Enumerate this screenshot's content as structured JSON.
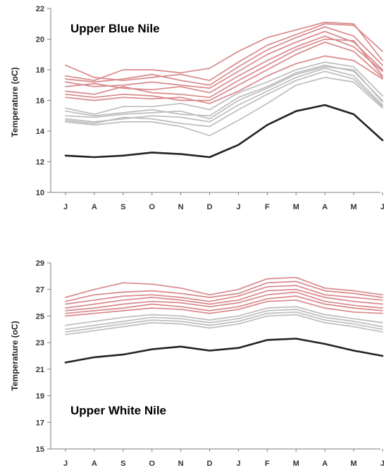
{
  "chart_data": [
    {
      "type": "line",
      "title": "Upper Blue Nile",
      "xlabel": "",
      "ylabel": "Temperature (oC)",
      "categories": [
        "J",
        "A",
        "S",
        "O",
        "N",
        "D",
        "J",
        "F",
        "M",
        "A",
        "M",
        "J"
      ],
      "ylim": [
        10,
        22
      ],
      "yticks": [
        10,
        12,
        14,
        16,
        18,
        20,
        22
      ],
      "grid": false,
      "colors": {
        "warm": "#d9888a",
        "mid": "#bdbdbd",
        "base": "#222222"
      },
      "series": [
        {
          "group": "warm",
          "values": [
            18.3,
            17.5,
            17.3,
            17.5,
            17.7,
            17.3,
            18.5,
            19.6,
            20.3,
            21.0,
            20.9,
            19.2
          ]
        },
        {
          "group": "warm",
          "values": [
            17.6,
            17.3,
            18.0,
            18.0,
            17.8,
            18.1,
            19.2,
            20.1,
            20.6,
            21.1,
            21.0,
            18.6
          ]
        },
        {
          "group": "warm",
          "values": [
            17.4,
            17.2,
            17.4,
            17.7,
            17.3,
            17.0,
            18.2,
            19.3,
            20.1,
            20.8,
            20.2,
            18.3
          ]
        },
        {
          "group": "warm",
          "values": [
            17.2,
            16.9,
            17.0,
            17.2,
            17.0,
            16.8,
            17.9,
            19.0,
            19.8,
            20.5,
            19.8,
            18.0
          ]
        },
        {
          "group": "warm",
          "values": [
            16.9,
            17.1,
            16.8,
            16.7,
            16.9,
            16.5,
            17.6,
            18.6,
            19.5,
            20.2,
            19.5,
            17.9
          ]
        },
        {
          "group": "warm",
          "values": [
            16.6,
            16.4,
            16.9,
            16.5,
            16.4,
            16.2,
            17.3,
            18.3,
            19.3,
            20.0,
            19.9,
            17.6
          ]
        },
        {
          "group": "warm",
          "values": [
            16.4,
            16.2,
            16.4,
            16.3,
            16.0,
            16.0,
            17.0,
            18.0,
            19.0,
            19.8,
            19.2,
            17.5
          ]
        },
        {
          "group": "warm",
          "values": [
            16.2,
            16.0,
            16.2,
            16.1,
            16.2,
            15.8,
            16.6,
            17.6,
            18.4,
            18.9,
            18.6,
            17.4
          ]
        },
        {
          "group": "mid",
          "values": [
            15.5,
            15.1,
            15.6,
            15.6,
            15.8,
            15.4,
            16.5,
            17.2,
            18.0,
            18.5,
            18.2,
            16.3
          ]
        },
        {
          "group": "mid",
          "values": [
            15.3,
            15.0,
            15.2,
            15.4,
            15.1,
            15.0,
            16.2,
            16.9,
            17.8,
            18.3,
            17.9,
            16.0
          ]
        },
        {
          "group": "mid",
          "values": [
            15.0,
            14.9,
            15.1,
            15.2,
            15.3,
            14.8,
            16.0,
            16.8,
            17.7,
            18.2,
            18.0,
            15.9
          ]
        },
        {
          "group": "mid",
          "values": [
            14.8,
            14.6,
            14.8,
            15.0,
            14.9,
            14.6,
            15.7,
            16.6,
            17.5,
            18.1,
            17.6,
            15.7
          ]
        },
        {
          "group": "mid",
          "values": [
            14.7,
            14.5,
            14.9,
            14.8,
            14.5,
            14.3,
            15.4,
            16.4,
            17.3,
            17.9,
            17.4,
            15.6
          ]
        },
        {
          "group": "mid",
          "values": [
            14.6,
            14.4,
            14.6,
            14.6,
            14.3,
            13.7,
            14.7,
            15.8,
            17.0,
            17.5,
            17.2,
            15.5
          ]
        },
        {
          "group": "base",
          "values": [
            12.4,
            12.3,
            12.4,
            12.6,
            12.5,
            12.3,
            13.1,
            14.4,
            15.3,
            15.7,
            15.1,
            13.4
          ]
        }
      ]
    },
    {
      "type": "line",
      "title": "Upper White Nile",
      "xlabel": "",
      "ylabel": "Temperature (oC)",
      "categories": [
        "J",
        "A",
        "S",
        "O",
        "N",
        "D",
        "J",
        "F",
        "M",
        "A",
        "M",
        "J"
      ],
      "ylim": [
        15,
        29
      ],
      "yticks": [
        15,
        17,
        19,
        21,
        23,
        25,
        27,
        29
      ],
      "grid": false,
      "colors": {
        "warm": "#d9888a",
        "mid": "#bdbdbd",
        "base": "#222222"
      },
      "series": [
        {
          "group": "warm",
          "values": [
            26.4,
            27.0,
            27.5,
            27.4,
            27.1,
            26.6,
            27.0,
            27.8,
            27.9,
            27.1,
            26.9,
            26.6
          ]
        },
        {
          "group": "warm",
          "values": [
            26.1,
            26.6,
            26.8,
            26.9,
            26.7,
            26.4,
            26.7,
            27.5,
            27.6,
            26.9,
            26.7,
            26.4
          ]
        },
        {
          "group": "warm",
          "values": [
            25.9,
            26.2,
            26.5,
            26.6,
            26.4,
            26.1,
            26.5,
            27.2,
            27.3,
            26.6,
            26.4,
            26.2
          ]
        },
        {
          "group": "warm",
          "values": [
            25.6,
            25.9,
            26.2,
            26.4,
            26.2,
            25.9,
            26.2,
            26.9,
            27.0,
            26.4,
            26.1,
            25.9
          ]
        },
        {
          "group": "warm",
          "values": [
            25.4,
            25.6,
            25.9,
            26.1,
            26.0,
            25.7,
            26.0,
            26.6,
            26.8,
            26.1,
            25.8,
            25.6
          ]
        },
        {
          "group": "warm",
          "values": [
            25.2,
            25.4,
            25.6,
            25.9,
            25.7,
            25.4,
            25.7,
            26.3,
            26.5,
            25.9,
            25.6,
            25.4
          ]
        },
        {
          "group": "warm",
          "values": [
            25.0,
            25.2,
            25.4,
            25.6,
            25.5,
            25.2,
            25.5,
            26.1,
            26.2,
            25.6,
            25.3,
            25.2
          ]
        },
        {
          "group": "mid",
          "values": [
            24.3,
            24.6,
            24.9,
            25.1,
            25.0,
            24.7,
            25.0,
            25.6,
            25.7,
            25.1,
            24.8,
            24.5
          ]
        },
        {
          "group": "mid",
          "values": [
            24.0,
            24.3,
            24.6,
            24.9,
            24.8,
            24.5,
            24.8,
            25.4,
            25.5,
            24.9,
            24.6,
            24.2
          ]
        },
        {
          "group": "mid",
          "values": [
            23.8,
            24.1,
            24.4,
            24.7,
            24.6,
            24.3,
            24.6,
            25.2,
            25.3,
            24.7,
            24.4,
            24.0
          ]
        },
        {
          "group": "mid",
          "values": [
            23.6,
            23.9,
            24.2,
            24.5,
            24.4,
            24.1,
            24.4,
            25.0,
            25.1,
            24.5,
            24.2,
            23.8
          ]
        },
        {
          "group": "base",
          "values": [
            21.5,
            21.9,
            22.1,
            22.5,
            22.7,
            22.4,
            22.6,
            23.2,
            23.3,
            22.9,
            22.4,
            22.0
          ]
        }
      ]
    }
  ]
}
